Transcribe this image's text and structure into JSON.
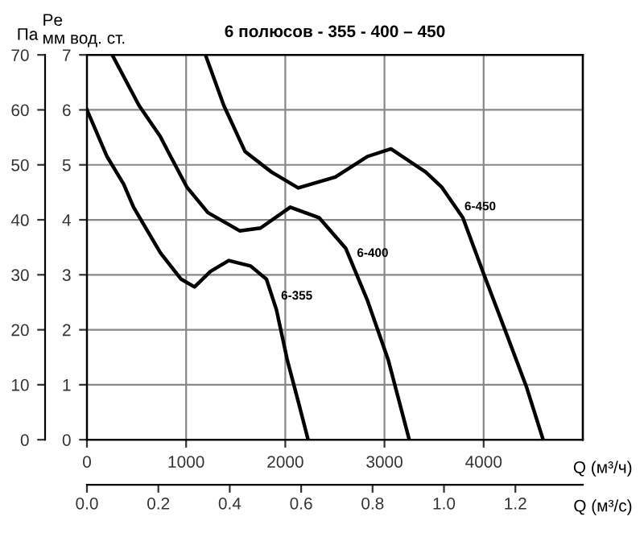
{
  "chart_data": {
    "type": "line",
    "title": "6 полюсов - 355 - 400 – 450",
    "xlabel": "Q (м³/ч)",
    "x2label": "Q (м³/с)",
    "ylabel": "Па",
    "y2label": "Pe\nмм вод. ст.",
    "xlim": [
      0,
      5000
    ],
    "xticks": [
      0,
      1000,
      2000,
      3000,
      4000
    ],
    "x2lim": [
      0,
      1.3889
    ],
    "x2ticks": [
      {
        "value": 0,
        "label": "0.0"
      },
      {
        "value": 0.2,
        "label": "0.2"
      },
      {
        "value": 0.4,
        "label": "0.4"
      },
      {
        "value": 0.6,
        "label": "0.6"
      },
      {
        "value": 0.8,
        "label": "0.8"
      },
      {
        "value": 1,
        "label": "1.0"
      },
      {
        "value": 1.2,
        "label": "1.2"
      }
    ],
    "ylim": [
      0,
      70
    ],
    "yticks": [
      0,
      10,
      20,
      30,
      40,
      50,
      60,
      70
    ],
    "y2lim": [
      0,
      7
    ],
    "y2ticks": [
      0,
      1,
      2,
      3,
      4,
      5,
      6,
      7
    ],
    "grid": true,
    "legend": false,
    "marker": "none",
    "line_style": "solid",
    "series": [
      {
        "name": "6-355",
        "color": "#000000",
        "x": [
          0,
          203,
          370,
          470,
          740,
          950,
          1085,
          1245,
          1430,
          1650,
          1810,
          1910,
          2020,
          2130,
          2230
        ],
        "values": [
          60,
          51.5,
          46.5,
          42.3,
          34,
          29.2,
          27.8,
          30.6,
          32.6,
          31.6,
          29.2,
          23.7,
          14.5,
          7,
          0
        ]
      },
      {
        "name": "6-400",
        "color": "#000000",
        "x": [
          255,
          525,
          738,
          845,
          1006,
          1220,
          1540,
          1750,
          2050,
          2340,
          2610,
          2825,
          3040,
          3250
        ],
        "values": [
          70,
          60.8,
          55.2,
          51.5,
          46,
          41.3,
          38,
          38.5,
          42.3,
          40.4,
          34.8,
          25.5,
          14.4,
          0
        ]
      },
      {
        "name": "6-450",
        "color": "#000000",
        "x": [
          1195,
          1380,
          1595,
          1860,
          2130,
          2505,
          2825,
          3065,
          3415,
          3575,
          3790,
          4000,
          4215,
          4430,
          4600
        ],
        "values": [
          70,
          60.8,
          52.4,
          48.7,
          45.8,
          47.8,
          51.5,
          52.9,
          48.7,
          46,
          40.4,
          30.2,
          20,
          9.7,
          0
        ]
      }
    ]
  }
}
